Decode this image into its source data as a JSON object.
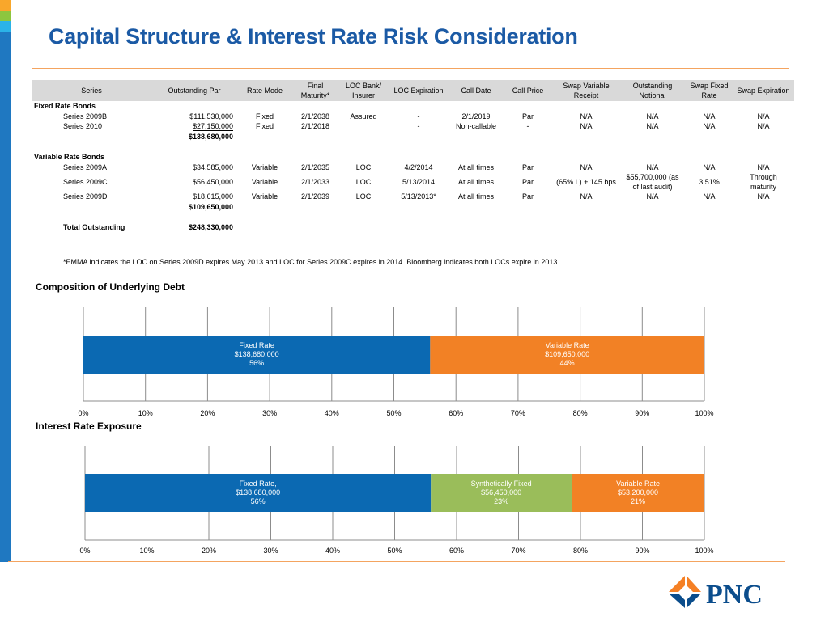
{
  "title": "Capital Structure & Interest Rate Risk Consideration",
  "table": {
    "headers": [
      "Series",
      "Outstanding Par",
      "Rate Mode",
      "Final Maturity*",
      "LOC Bank/ Insurer",
      "LOC Expiration",
      "Call Date",
      "Call Price",
      "Swap Variable Receipt",
      "Outstanding Notional",
      "Swap Fixed Rate",
      "Swap Expiration"
    ],
    "sections": {
      "fixed_label": "Fixed Rate Bonds",
      "variable_label": "Variable Rate Bonds"
    },
    "fixed_rows": [
      [
        "Series 2009B",
        "$111,530,000",
        "Fixed",
        "2/1/2038",
        "Assured",
        "-",
        "2/1/2019",
        "Par",
        "N/A",
        "N/A",
        "N/A",
        "N/A"
      ],
      [
        "Series 2010",
        "$27,150,000",
        "Fixed",
        "2/1/2018",
        "",
        "-",
        "Non-callable",
        "-",
        "N/A",
        "N/A",
        "N/A",
        "N/A"
      ]
    ],
    "fixed_subtotal": "$138,680,000",
    "variable_rows": [
      [
        "Series 2009A",
        "$34,585,000",
        "Variable",
        "2/1/2035",
        "LOC",
        "4/2/2014",
        "At all times",
        "Par",
        "N/A",
        "N/A",
        "N/A",
        "N/A"
      ],
      [
        "Series 2009C",
        "$56,450,000",
        "Variable",
        "2/1/2033",
        "LOC",
        "5/13/2014",
        "At all times",
        "Par",
        "(65% L) + 145 bps",
        "$55,700,000 (as of last audit)",
        "3.51%",
        "Through maturity"
      ],
      [
        "Series 2009D",
        "$18,615,000",
        "Variable",
        "2/1/2039",
        "LOC",
        "5/13/2013*",
        "At all times",
        "Par",
        "N/A",
        "N/A",
        "N/A",
        "N/A"
      ]
    ],
    "variable_subtotal": "$109,650,000",
    "total_label": "Total Outstanding",
    "total_value": "$248,330,000"
  },
  "footnote": "*EMMA indicates the LOC on Series 2009D expires May 2013 and LOC for Series 2009C expires in 2014. Bloomberg indicates both LOCs expire in 2013.",
  "chart_data": [
    {
      "type": "bar",
      "orientation": "horizontal-stacked-100",
      "title": "Composition of Underlying Debt",
      "xlim": [
        0,
        100
      ],
      "x_ticks": [
        "0%",
        "10%",
        "20%",
        "30%",
        "40%",
        "50%",
        "60%",
        "70%",
        "80%",
        "90%",
        "100%"
      ],
      "grid": true,
      "series": [
        {
          "name": "Fixed Rate",
          "value": 138680000,
          "percent": 56,
          "labels": [
            "Fixed Rate",
            "$138,680,000",
            "56%"
          ],
          "color": "#0b69b2"
        },
        {
          "name": "Variable Rate",
          "value": 109650000,
          "percent": 44,
          "labels": [
            "Variable Rate",
            "$109,650,000",
            "44%"
          ],
          "color": "#f28125"
        }
      ]
    },
    {
      "type": "bar",
      "orientation": "horizontal-stacked-100",
      "title": "Interest Rate Exposure",
      "xlim": [
        0,
        100
      ],
      "x_ticks": [
        "0%",
        "10%",
        "20%",
        "30%",
        "40%",
        "50%",
        "60%",
        "70%",
        "80%",
        "90%",
        "100%"
      ],
      "grid": true,
      "series": [
        {
          "name": "Fixed Rate,",
          "value": 138680000,
          "percent": 56,
          "labels": [
            "Fixed Rate,",
            "$138,680,000",
            "56%"
          ],
          "color": "#0b69b2"
        },
        {
          "name": "Synthetically Fixed",
          "value": 56450000,
          "percent": 23,
          "labels": [
            "Synthetically Fixed",
            "$56,450,000",
            "23%"
          ],
          "color": "#9abd5a"
        },
        {
          "name": "Variable Rate",
          "value": 53200000,
          "percent": 21,
          "labels": [
            "Variable Rate",
            "$53,200,000",
            "21%"
          ],
          "color": "#f28125"
        }
      ]
    }
  ],
  "logo": {
    "text": "PNC",
    "colors": {
      "orange": "#f58025",
      "blue": "#0b4d8c"
    }
  }
}
